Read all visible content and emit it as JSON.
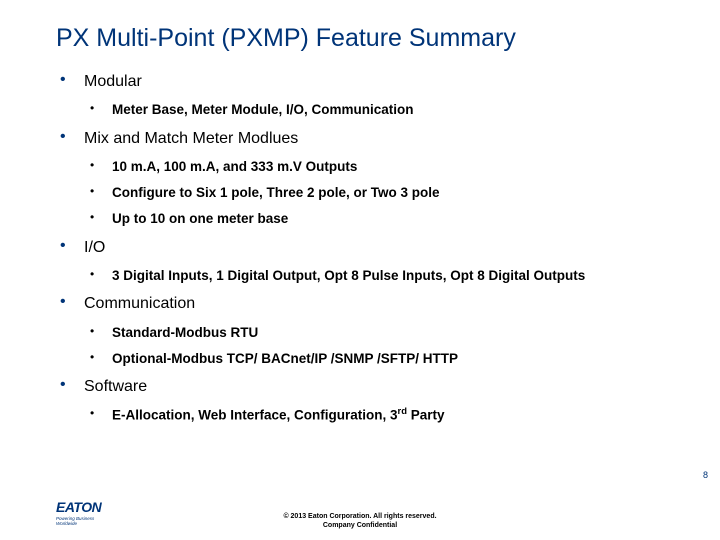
{
  "title": "PX Multi-Point (PXMP) Feature Summary",
  "bullets": [
    {
      "text": "Modular",
      "subs": [
        "Meter Base, Meter Module, I/O, Communication"
      ]
    },
    {
      "text": "Mix and Match Meter Modlues",
      "subs": [
        "10 m.A, 100 m.A, and 333 m.V Outputs",
        "Configure to Six 1 pole, Three 2 pole, or Two 3 pole",
        "Up to 10 on one meter base"
      ]
    },
    {
      "text": "I/O",
      "subs": [
        "3 Digital Inputs, 1 Digital Output, Opt 8 Pulse Inputs, Opt 8 Digital Outputs"
      ]
    },
    {
      "text": "Communication",
      "subs": [
        "Standard-Modbus RTU",
        "Optional-Modbus TCP/ BACnet/IP /SNMP /SFTP/ HTTP"
      ]
    },
    {
      "text": "Software",
      "subs": [
        "E-Allocation, Web Interface, Configuration, 3rd Party"
      ]
    }
  ],
  "page_number": "8",
  "footer_line1": "© 2013 Eaton Corporation. All rights reserved.",
  "footer_line2": "Company Confidential",
  "logo_text": "EATON",
  "logo_tagline": "Powering Business Worldwide",
  "colors": {
    "brand": "#003478",
    "text": "#000000",
    "bg": "#ffffff"
  }
}
